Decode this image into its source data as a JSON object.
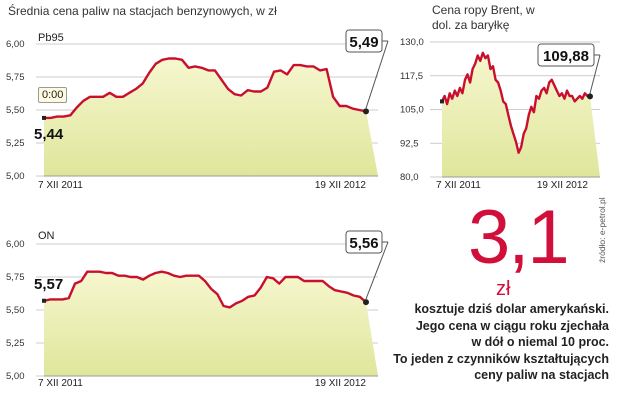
{
  "colors": {
    "line": "#c8102e",
    "area_top": "#f6f7cf",
    "area_bottom": "#dfe69b",
    "axis_text": "#333333",
    "accent": "#d0103a"
  },
  "overlay": {
    "time_badge": "0:00"
  },
  "chart_data": [
    {
      "id": "pb95",
      "type": "area",
      "title": "Średnia cena paliw na stacjach benzynowych, w zł",
      "label": "Pb95",
      "ylim": [
        5.0,
        6.0
      ],
      "yticks": [
        "6,00",
        "5,75",
        "5,50",
        "5,25",
        "5,00"
      ],
      "xlabels": [
        "7 XII 2011",
        "19 XII 2012"
      ],
      "start_label": "5,44",
      "end_label": "5,49",
      "y": [
        5.44,
        5.44,
        5.45,
        5.45,
        5.46,
        5.52,
        5.57,
        5.6,
        5.6,
        5.6,
        5.63,
        5.6,
        5.6,
        5.63,
        5.66,
        5.7,
        5.78,
        5.85,
        5.88,
        5.89,
        5.89,
        5.88,
        5.82,
        5.83,
        5.82,
        5.8,
        5.8,
        5.73,
        5.66,
        5.62,
        5.61,
        5.65,
        5.64,
        5.64,
        5.67,
        5.79,
        5.8,
        5.77,
        5.84,
        5.84,
        5.83,
        5.83,
        5.8,
        5.81,
        5.6,
        5.53,
        5.53,
        5.51,
        5.5,
        5.49
      ]
    },
    {
      "id": "brent",
      "type": "area",
      "title": "Cena ropy Brent, w dol. za baryłkę",
      "ylim": [
        80.0,
        130.0
      ],
      "yticks": [
        "130,0",
        "117,5",
        "105,0",
        "92,5",
        "80,0"
      ],
      "xlabels": [
        "7 XII 2011",
        "19 XII 2012"
      ],
      "end_label": "109,88",
      "y": [
        108,
        110,
        107,
        111,
        109,
        112,
        110,
        113,
        111,
        116,
        118,
        115,
        120,
        122,
        125,
        123,
        126,
        124,
        125,
        120,
        121,
        116,
        115,
        112,
        108,
        107,
        103,
        99,
        96,
        93,
        89,
        91,
        96,
        98,
        103,
        106,
        104,
        110,
        109,
        112,
        113,
        111,
        115,
        116,
        114,
        112,
        110,
        111,
        109,
        112,
        110,
        110,
        108,
        109,
        110,
        109,
        111,
        110,
        109.88
      ]
    },
    {
      "id": "on",
      "type": "area",
      "label": "ON",
      "ylim": [
        5.0,
        6.0
      ],
      "yticks": [
        "6,00",
        "5,75",
        "5,50",
        "5,25",
        "5,00"
      ],
      "xlabels": [
        "7 XII 2011",
        "19 XII 2012"
      ],
      "start_label": "5,57",
      "end_label": "5,56",
      "y": [
        5.57,
        5.58,
        5.58,
        5.58,
        5.59,
        5.7,
        5.72,
        5.79,
        5.79,
        5.79,
        5.78,
        5.78,
        5.76,
        5.76,
        5.75,
        5.75,
        5.73,
        5.76,
        5.78,
        5.79,
        5.78,
        5.76,
        5.75,
        5.76,
        5.76,
        5.76,
        5.72,
        5.66,
        5.62,
        5.53,
        5.52,
        5.55,
        5.57,
        5.6,
        5.61,
        5.67,
        5.75,
        5.74,
        5.7,
        5.75,
        5.75,
        5.75,
        5.72,
        5.72,
        5.72,
        5.72,
        5.68,
        5.65,
        5.64,
        5.63,
        5.61,
        5.6,
        5.56
      ]
    }
  ],
  "headline": {
    "value": "3,1",
    "unit": "zł",
    "lines": [
      "kosztuje dziś dolar amerykański.",
      "Jego cena w ciągu roku zjechała",
      "w dół o niemal 10 proc.",
      "To jeden z czynników kształtujących",
      "ceny paliw na stacjach"
    ]
  },
  "source": "źródło: e-petrol.pl"
}
